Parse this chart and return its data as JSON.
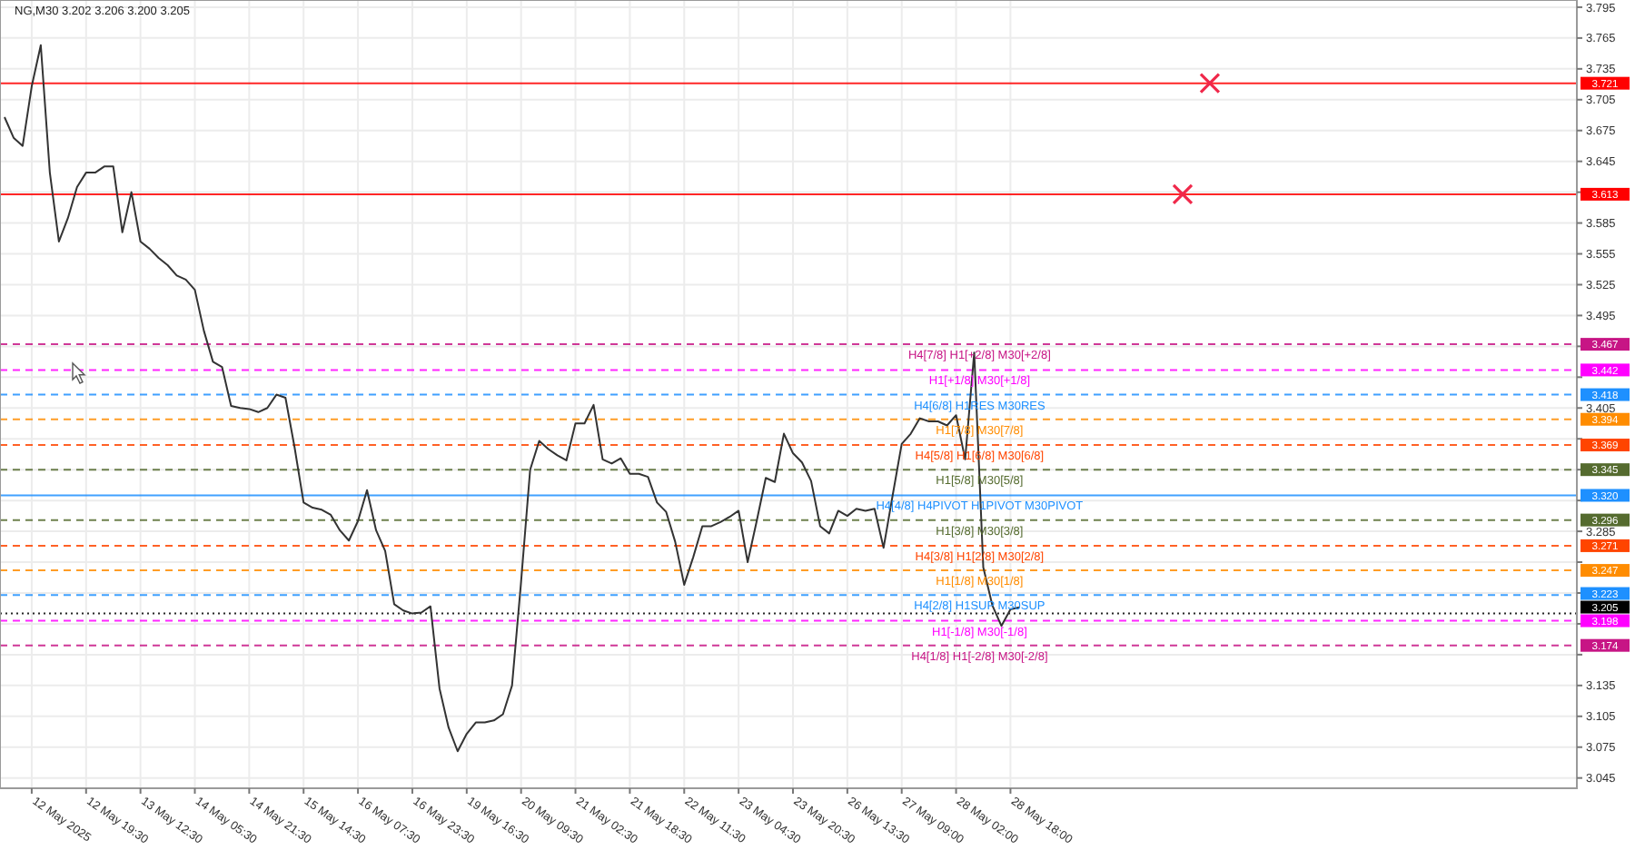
{
  "chart_data": {
    "type": "line",
    "title": "NG,M30  3.202 3.206 3.200 3.205",
    "ylim": [
      3.035,
      3.802
    ],
    "categories": [
      null,
      null,
      null,
      "12 May 2025",
      null,
      null,
      null,
      null,
      null,
      "12 May 19:30",
      null,
      null,
      null,
      null,
      null,
      "13 May 12:30",
      null,
      null,
      null,
      null,
      null,
      "14 May 05:30",
      null,
      null,
      null,
      null,
      null,
      "14 May 21:30",
      null,
      null,
      null,
      null,
      null,
      "15 May 14:30",
      null,
      null,
      null,
      null,
      null,
      "16 May 07:30",
      null,
      null,
      null,
      null,
      null,
      "16 May 23:30",
      null,
      null,
      null,
      null,
      null,
      "19 May 16:30",
      null,
      null,
      null,
      null,
      null,
      "20 May 09:30",
      null,
      null,
      null,
      null,
      null,
      "21 May 02:30",
      null,
      null,
      null,
      null,
      null,
      "21 May 18:30",
      null,
      null,
      null,
      null,
      null,
      "22 May 11:30",
      null,
      null,
      null,
      null,
      null,
      "23 May 04:30",
      null,
      null,
      null,
      null,
      null,
      "23 May 20:30",
      null,
      null,
      null,
      null,
      null,
      "26 May 13:30",
      null,
      null,
      null,
      null,
      null,
      "27 May 09:00",
      null,
      null,
      null,
      null,
      null,
      "28 May 02:00",
      null,
      null,
      null,
      null,
      null,
      "28 May 18:00",
      null,
      null,
      null,
      null,
      null,
      null,
      null,
      null,
      null,
      null,
      null,
      null,
      null,
      null,
      null,
      null,
      null,
      null,
      null,
      null,
      null,
      null,
      null,
      null,
      null,
      null,
      null,
      null,
      null,
      null,
      null,
      null,
      null,
      null,
      null,
      null,
      null,
      null,
      null,
      null,
      null,
      null,
      null,
      null,
      null,
      null,
      null,
      null,
      null,
      null,
      null,
      null,
      null,
      null,
      null,
      null,
      null,
      null,
      null,
      null,
      null,
      null
    ],
    "yticks": [
      3.795,
      3.765,
      3.735,
      3.705,
      3.675,
      3.645,
      {
        "value": 3.615,
        "label": null
      },
      3.585,
      3.555,
      3.525,
      3.495,
      {
        "value": 3.465,
        "label": null
      },
      {
        "value": 3.435,
        "label": null
      },
      3.405,
      {
        "value": 3.375,
        "label": null
      },
      {
        "value": 3.345,
        "label": null
      },
      {
        "value": 3.315,
        "label": null
      },
      3.285,
      {
        "value": 3.255,
        "label": null
      },
      {
        "value": 3.225,
        "label": null
      },
      {
        "value": 3.195,
        "label": null
      },
      {
        "value": 3.165,
        "label": null
      },
      3.135,
      3.105,
      3.075,
      3.045
    ],
    "grid": true,
    "line_style": "solid",
    "series": [
      {
        "color": "#333333",
        "values": [
          3.688,
          3.668,
          3.66,
          3.718,
          3.758,
          3.634,
          3.567,
          3.59,
          3.62,
          3.634,
          3.634,
          3.64,
          3.64,
          3.576,
          3.615,
          3.567,
          3.56,
          3.551,
          3.544,
          3.534,
          3.53,
          3.52,
          3.48,
          3.45,
          3.445,
          3.407,
          3.405,
          3.404,
          3.401,
          3.405,
          3.418,
          3.415,
          3.367,
          3.313,
          3.308,
          3.306,
          3.301,
          3.286,
          3.276,
          3.295,
          3.325,
          3.286,
          3.266,
          3.214,
          3.208,
          3.205,
          3.206,
          3.212,
          3.132,
          3.094,
          3.071,
          3.088,
          3.099,
          3.099,
          3.101,
          3.107,
          3.135,
          3.236,
          3.345,
          3.373,
          3.365,
          3.359,
          3.354,
          3.39,
          3.39,
          3.408,
          3.355,
          3.351,
          3.356,
          3.341,
          3.341,
          3.338,
          3.313,
          3.304,
          3.275,
          3.233,
          3.26,
          3.29,
          3.29,
          3.294,
          3.299,
          3.305,
          3.255,
          3.295,
          3.337,
          3.333,
          3.38,
          3.361,
          3.352,
          3.334,
          3.29,
          3.283,
          3.305,
          3.3,
          3.307,
          3.305,
          3.307,
          3.269,
          3.32,
          3.37,
          3.38,
          3.395,
          3.392,
          3.392,
          3.388,
          3.398,
          3.355,
          3.459,
          3.25,
          3.213,
          3.193,
          3.209,
          3.211,
          null,
          null,
          null,
          null,
          null,
          null,
          null,
          null,
          null,
          null,
          null,
          null,
          null,
          null,
          null,
          null,
          null,
          null,
          null,
          null,
          null,
          null,
          null,
          null,
          null,
          null,
          null,
          null,
          null,
          null,
          null,
          null,
          null,
          null,
          null,
          null,
          null,
          null,
          null,
          null,
          null,
          null,
          null,
          null,
          null,
          null,
          null,
          null,
          null,
          null,
          null,
          null,
          null,
          null,
          null,
          null,
          null,
          null,
          null,
          null,
          null
        ]
      },
      {
        "type": "scatter",
        "marker": "cross",
        "color": "#f0284a",
        "values": [
          null,
          null,
          null,
          null,
          null,
          null,
          null,
          null,
          null,
          null,
          null,
          null,
          null,
          null,
          null,
          null,
          null,
          null,
          null,
          null,
          null,
          null,
          null,
          null,
          null,
          null,
          null,
          null,
          null,
          null,
          null,
          null,
          null,
          null,
          null,
          null,
          null,
          null,
          null,
          null,
          null,
          null,
          null,
          null,
          null,
          null,
          null,
          null,
          null,
          null,
          null,
          null,
          null,
          null,
          null,
          null,
          null,
          null,
          null,
          null,
          null,
          null,
          null,
          null,
          null,
          null,
          null,
          null,
          null,
          null,
          null,
          null,
          null,
          null,
          null,
          null,
          null,
          null,
          null,
          null,
          null,
          null,
          null,
          null,
          null,
          null,
          null,
          null,
          null,
          null,
          null,
          null,
          null,
          null,
          null,
          null,
          null,
          null,
          null,
          null,
          null,
          null,
          null,
          null,
          null,
          null,
          null,
          null,
          null,
          null,
          null,
          null,
          null,
          null,
          null,
          null,
          null,
          null,
          null,
          null,
          null,
          null,
          null,
          null,
          null,
          null,
          null,
          null,
          null,
          null,
          3.613,
          null,
          null,
          3.721,
          null,
          null,
          null,
          null,
          null,
          null,
          null,
          null,
          null,
          null,
          null,
          null,
          null,
          null,
          null,
          null,
          null,
          null,
          null,
          null,
          null,
          null,
          null,
          null,
          null,
          null,
          null,
          null,
          null,
          null,
          null,
          null,
          null,
          null,
          null,
          null,
          null,
          null,
          null,
          null
        ]
      }
    ],
    "ref_lines": [
      {
        "axis": "y",
        "value": 3.721,
        "label": "3.721",
        "color": "#ff0000",
        "line_style": "solid"
      },
      {
        "axis": "y",
        "value": 3.613,
        "label": "3.613",
        "color": "#ff0000",
        "line_style": "solid"
      },
      {
        "axis": "y",
        "value": 3.467,
        "label": "3.467",
        "color": "#c71585",
        "line_style": "dashed"
      },
      {
        "axis": "y",
        "value": 3.442,
        "label": "3.442",
        "color": "#ff00ff",
        "line_style": "dashed"
      },
      {
        "axis": "y",
        "value": 3.418,
        "label": "3.418",
        "color": "#1e90ff",
        "line_style": "dashed"
      },
      {
        "axis": "y",
        "value": 3.394,
        "label": "3.394",
        "color": "#ff8c00",
        "line_style": "dashed"
      },
      {
        "axis": "y",
        "value": 3.369,
        "label": "3.369",
        "color": "#ff4500",
        "line_style": "dashed"
      },
      {
        "axis": "y",
        "value": 3.345,
        "label": "3.345",
        "color": "#556b2f",
        "line_style": "dashed"
      },
      {
        "axis": "y",
        "value": 3.32,
        "label": "3.320",
        "color": "#1e90ff",
        "line_style": "solid"
      },
      {
        "axis": "y",
        "value": 3.296,
        "label": "3.296",
        "color": "#556b2f",
        "line_style": "dashed"
      },
      {
        "axis": "y",
        "value": 3.271,
        "label": "3.271",
        "color": "#ff4500",
        "line_style": "dashed"
      },
      {
        "axis": "y",
        "value": 3.247,
        "label": "3.247",
        "color": "#ff8c00",
        "line_style": "dashed"
      },
      {
        "axis": "y",
        "value": 3.223,
        "label": "3.223",
        "color": "#1e90ff",
        "line_style": "dashed"
      },
      {
        "axis": "y",
        "value": 3.205,
        "label": "3.205",
        "color": "#000000",
        "line_style": "dotted"
      },
      {
        "axis": "y",
        "value": 3.198,
        "label": "3.198",
        "color": "#ff00ff",
        "line_style": "dashed"
      },
      {
        "axis": "y",
        "value": 3.174,
        "label": "3.174",
        "color": "#c71585",
        "line_style": "dashed"
      }
    ],
    "annotations": [
      {
        "text": "H4[7/8] H1[+2/8] M30[+2/8]",
        "y": 3.467
      },
      {
        "text": "H1[+1/8] M30[+1/8]",
        "y": 3.442
      },
      {
        "text": "H4[6/8] H1RES M30RES",
        "y": 3.418
      },
      {
        "text": "H1[7/8] M30[7/8]",
        "y": 3.394
      },
      {
        "text": "H4[5/8] H1[6/8] M30[6/8]",
        "y": 3.369
      },
      {
        "text": "H1[5/8] M30[5/8]",
        "y": 3.345
      },
      {
        "text": "H4[4/8] H4PIVOT H1PIVOT M30PIVOT",
        "y": 3.32
      },
      {
        "text": "H1[3/8] M30[3/8]",
        "y": 3.296
      },
      {
        "text": "H4[3/8] H1[2/8] M30[2/8]",
        "y": 3.271
      },
      {
        "text": "H1[1/8] M30[1/8]",
        "y": 3.247
      },
      {
        "text": "H4[2/8] H1SUP M30SUP",
        "y": 3.223
      },
      {
        "text": "H1[-1/8] M30[-1/8]",
        "y": 3.198
      },
      {
        "text": "H4[1/8] H1[-2/8] M30[-2/8]",
        "y": 3.174
      }
    ]
  }
}
